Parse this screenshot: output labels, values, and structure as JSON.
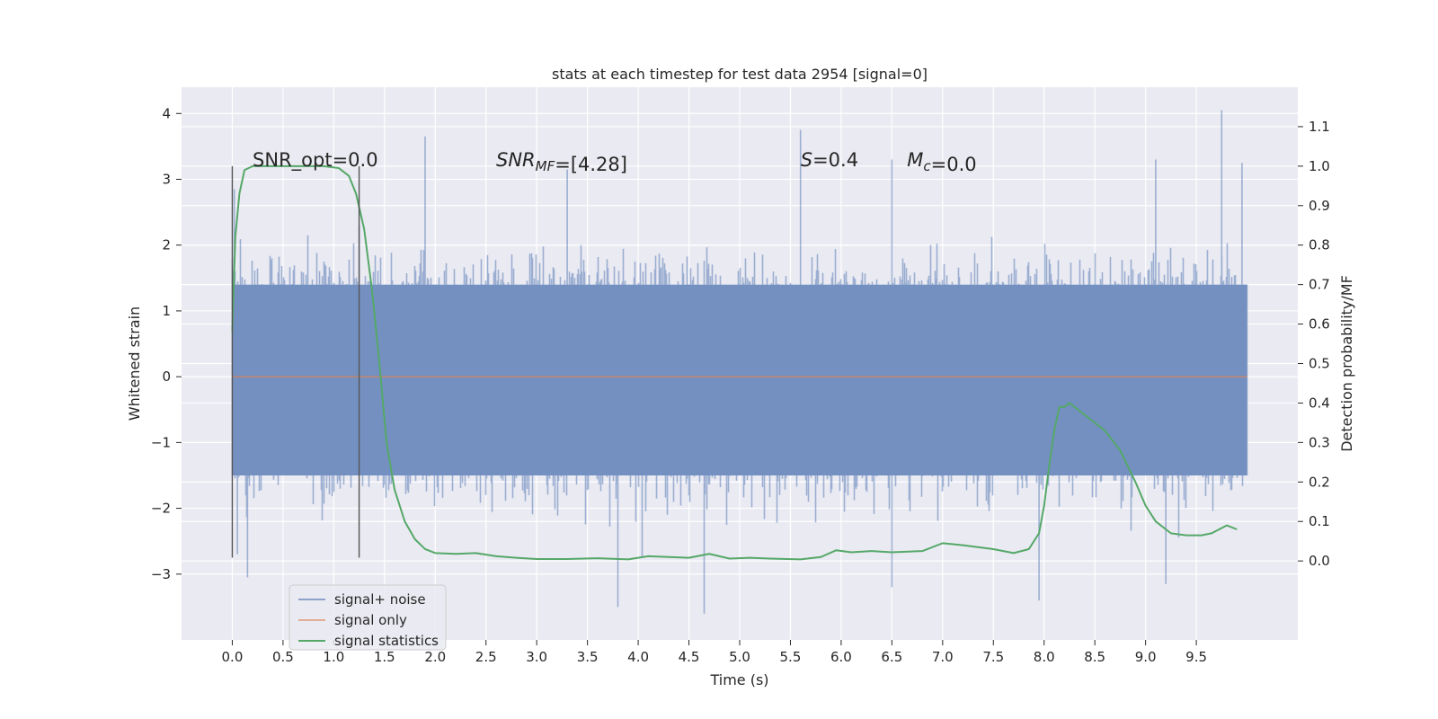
{
  "chart_data": {
    "type": "line",
    "title": "stats at each timestep for test data 2954 [signal=0]",
    "xlabel": "Time (s)",
    "ylabel": "Whitened strain",
    "y2label": "Detection probability/MF",
    "xlim": [
      -0.5,
      10.5
    ],
    "ylim": [
      -4.0,
      4.4
    ],
    "y2lim": [
      -0.2,
      1.2
    ],
    "xticks": [
      0.0,
      0.5,
      1.0,
      1.5,
      2.0,
      2.5,
      3.0,
      3.5,
      4.0,
      4.5,
      5.0,
      5.5,
      6.0,
      6.5,
      7.0,
      7.5,
      8.0,
      8.5,
      9.0,
      9.5
    ],
    "xtick_labels": [
      "0.0",
      "0.5",
      "1.0",
      "1.5",
      "2.0",
      "2.5",
      "3.0",
      "3.5",
      "4.0",
      "4.5",
      "5.0",
      "5.5",
      "6.0",
      "6.5",
      "7.0",
      "7.5",
      "8.0",
      "8.5",
      "9.0",
      "9.5"
    ],
    "yticks": [
      -3,
      -2,
      -1,
      0,
      1,
      2,
      3,
      4
    ],
    "ytick_labels": [
      "−3",
      "−2",
      "−1",
      "0",
      "1",
      "2",
      "3",
      "4"
    ],
    "y2ticks": [
      0.0,
      0.1,
      0.2,
      0.3,
      0.4,
      0.5,
      0.6,
      0.7,
      0.8,
      0.9,
      1.0,
      1.1
    ],
    "y2tick_labels": [
      "0.0",
      "0.1",
      "0.2",
      "0.3",
      "0.4",
      "0.5",
      "0.6",
      "0.7",
      "0.8",
      "0.9",
      "1.0",
      "1.1"
    ],
    "grid": true,
    "legend_position": "lower-left",
    "noise_band": {
      "x_range": [
        0.0,
        10.0
      ],
      "dense_range": [
        -1.5,
        1.4
      ],
      "peaks_max": 4.05,
      "peaks_min": -3.55,
      "notable_spikes": [
        {
          "x": 0.0,
          "y": 1.8
        },
        {
          "x": 0.02,
          "y": 2.85
        },
        {
          "x": 0.05,
          "y": -2.7
        },
        {
          "x": 0.15,
          "y": -3.05
        },
        {
          "x": 1.25,
          "y": 2.3
        },
        {
          "x": 1.9,
          "y": 3.65
        },
        {
          "x": 3.3,
          "y": 3.15
        },
        {
          "x": 3.8,
          "y": -3.5
        },
        {
          "x": 4.65,
          "y": -3.6
        },
        {
          "x": 5.6,
          "y": 3.75
        },
        {
          "x": 6.5,
          "y": 3.3
        },
        {
          "x": 6.5,
          "y": -3.2
        },
        {
          "x": 7.95,
          "y": -3.4
        },
        {
          "x": 9.1,
          "y": 3.3
        },
        {
          "x": 9.2,
          "y": -3.15
        },
        {
          "x": 9.75,
          "y": 4.05
        },
        {
          "x": 9.95,
          "y": 3.25
        }
      ]
    },
    "series": [
      {
        "name": "signal+ noise",
        "color": "#4c72b0",
        "x": [
          0.0,
          10.0
        ],
        "y": [
          0.0,
          0.0
        ]
      },
      {
        "name": "signal only",
        "color": "#dd8452",
        "x": [
          0.0,
          10.0
        ],
        "y": [
          0.0,
          0.0
        ]
      },
      {
        "name": "signal statistics",
        "color": "#55a868",
        "axis": "right",
        "x": [
          0.0,
          0.03,
          0.07,
          0.12,
          0.2,
          0.4,
          0.7,
          0.9,
          1.05,
          1.15,
          1.22,
          1.3,
          1.38,
          1.45,
          1.52,
          1.6,
          1.7,
          1.8,
          1.9,
          2.0,
          2.2,
          2.4,
          2.6,
          2.8,
          3.0,
          3.3,
          3.6,
          3.9,
          4.1,
          4.3,
          4.5,
          4.7,
          4.9,
          5.1,
          5.3,
          5.6,
          5.8,
          5.95,
          6.1,
          6.3,
          6.5,
          6.8,
          7.0,
          7.2,
          7.5,
          7.7,
          7.85,
          7.95,
          8.0,
          8.05,
          8.1,
          8.15,
          8.2,
          8.25,
          8.4,
          8.6,
          8.75,
          8.9,
          9.0,
          9.1,
          9.25,
          9.4,
          9.55,
          9.65,
          9.8,
          9.9
        ],
        "y": [
          0.58,
          0.82,
          0.93,
          0.99,
          1.0,
          1.0,
          1.0,
          1.0,
          0.995,
          0.975,
          0.93,
          0.84,
          0.68,
          0.5,
          0.3,
          0.18,
          0.1,
          0.055,
          0.03,
          0.02,
          0.018,
          0.02,
          0.012,
          0.008,
          0.005,
          0.005,
          0.007,
          0.004,
          0.012,
          0.01,
          0.008,
          0.018,
          0.006,
          0.008,
          0.006,
          0.004,
          0.01,
          0.027,
          0.022,
          0.025,
          0.022,
          0.025,
          0.045,
          0.04,
          0.03,
          0.02,
          0.03,
          0.07,
          0.14,
          0.24,
          0.33,
          0.39,
          0.39,
          0.4,
          0.37,
          0.33,
          0.28,
          0.2,
          0.14,
          0.1,
          0.07,
          0.065,
          0.065,
          0.07,
          0.09,
          0.08
        ]
      }
    ],
    "vertical_lines": [
      0.0,
      1.25
    ],
    "vertical_lines_range": [
      -2.75,
      3.2
    ],
    "annotations": [
      {
        "parts": [
          {
            "t": "SNR_opt=0.0"
          }
        ],
        "x": 0.2
      },
      {
        "parts": [
          {
            "t": "SNR",
            "i": true
          },
          {
            "t": "MF",
            "i": true,
            "sub": true
          },
          {
            "t": "=[4.28]"
          }
        ],
        "x": 2.6
      },
      {
        "parts": [
          {
            "t": "S",
            "i": true
          },
          {
            "t": "=0.4"
          }
        ],
        "x": 5.6
      },
      {
        "parts": [
          {
            "t": "M",
            "i": true
          },
          {
            "t": "c",
            "i": true,
            "sub": true
          },
          {
            "t": "=0.0"
          }
        ],
        "x": 6.65
      }
    ],
    "annotation_y": 3.2
  }
}
